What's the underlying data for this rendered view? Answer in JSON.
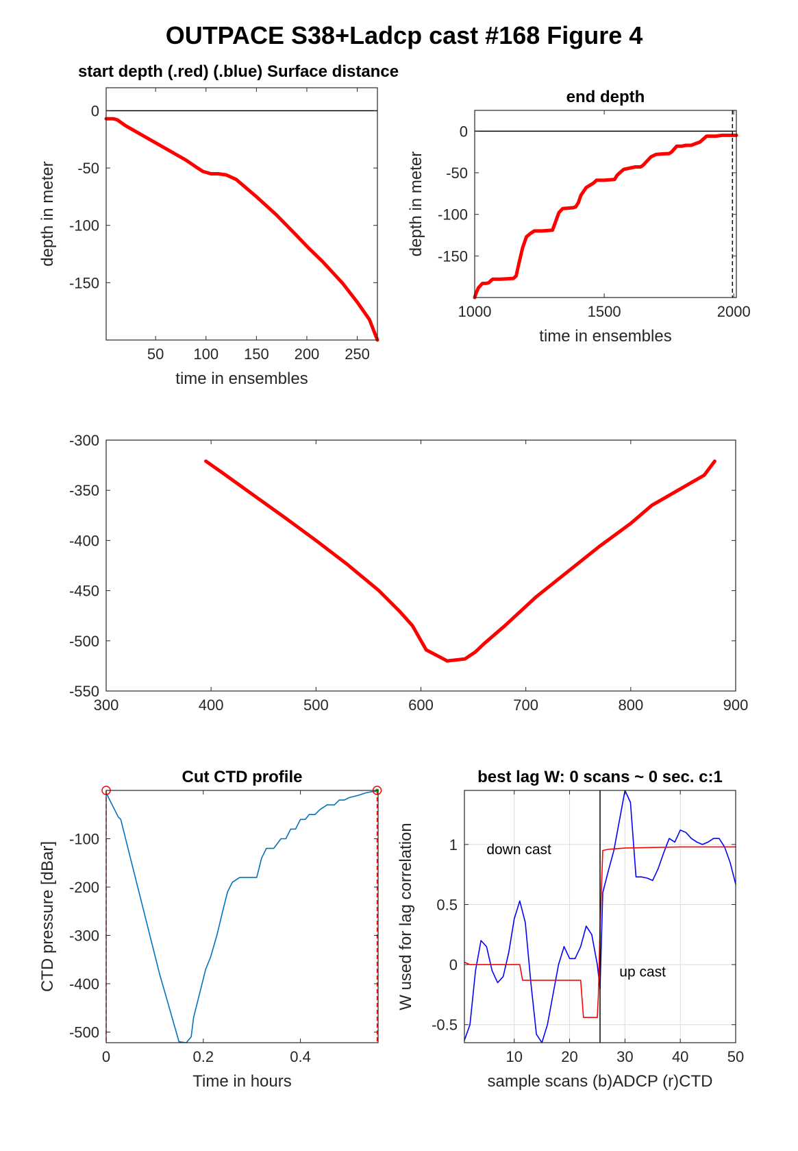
{
  "figure_title": "OUTPACE S38+Ladcp cast #168   Figure 4",
  "chart_data": [
    {
      "id": "start-depth",
      "type": "line",
      "title": "start depth (.red) (.blue) Surface distance",
      "xlabel": "time in ensembles",
      "ylabel": "depth in meter",
      "xlim": [
        1,
        270
      ],
      "ylim": [
        -200,
        20
      ],
      "xticks": [
        50,
        100,
        150,
        200,
        250
      ],
      "yticks": [
        0,
        -50,
        -100,
        -150
      ],
      "grid": false,
      "reference_line": 0,
      "series": [
        {
          "color": "#ff0000",
          "x": [
            1,
            8,
            12,
            20,
            40,
            60,
            80,
            90,
            97,
            105,
            112,
            120,
            130,
            150,
            170,
            190,
            202,
            215,
            235,
            250,
            262,
            270
          ],
          "y": [
            -7,
            -7,
            -8,
            -13,
            -23,
            -33,
            -43,
            -49,
            -53,
            -55,
            -55,
            -56,
            -60,
            -75,
            -91,
            -109,
            -120,
            -131,
            -150,
            -167,
            -182,
            -200
          ]
        }
      ]
    },
    {
      "id": "end-depth",
      "type": "line",
      "title": "end depth",
      "xlabel": "time in ensembles",
      "ylabel": "depth in meter",
      "xlim": [
        1000,
        2010
      ],
      "ylim": [
        -200,
        25
      ],
      "xticks": [
        1000,
        1500,
        2000
      ],
      "yticks": [
        0,
        -50,
        -100,
        -150
      ],
      "grid": false,
      "reference_line": 0,
      "vertical_marker": 1995,
      "series": [
        {
          "color": "#ff0000",
          "x": [
            1000,
            1005,
            1015,
            1030,
            1045,
            1055,
            1065,
            1070,
            1100,
            1150,
            1160,
            1170,
            1185,
            1200,
            1215,
            1230,
            1260,
            1300,
            1310,
            1325,
            1340,
            1380,
            1390,
            1400,
            1410,
            1430,
            1460,
            1470,
            1480,
            1500,
            1540,
            1550,
            1560,
            1575,
            1620,
            1630,
            1640,
            1650,
            1680,
            1700,
            1740,
            1750,
            1760,
            1780,
            1800,
            1815,
            1835,
            1870,
            1895,
            1900,
            1930,
            1955,
            1960,
            2010
          ],
          "y": [
            -200,
            -195,
            -188,
            -183,
            -183,
            -182,
            -179,
            -178,
            -178,
            -177,
            -174,
            -160,
            -140,
            -127,
            -123,
            -120,
            -120,
            -119,
            -111,
            -98,
            -93,
            -92,
            -91,
            -86,
            -77,
            -68,
            -62,
            -59,
            -59,
            -59,
            -58,
            -53,
            -50,
            -46,
            -43,
            -43,
            -43,
            -41,
            -31,
            -28,
            -27,
            -27,
            -25,
            -18,
            -18,
            -17,
            -17,
            -13,
            -6,
            -6,
            -6,
            -5,
            -5,
            -5
          ]
        }
      ]
    },
    {
      "id": "ensemble-depth",
      "type": "line",
      "title": "",
      "xlabel": "",
      "ylabel": "",
      "xlim": [
        300,
        900
      ],
      "ylim": [
        -550,
        -300
      ],
      "xticks": [
        300,
        400,
        500,
        600,
        700,
        800,
        900
      ],
      "yticks": [
        -300,
        -350,
        -400,
        -450,
        -500,
        -550
      ],
      "grid": false,
      "series": [
        {
          "color": "#ff0000",
          "x": [
            395,
            410,
            430,
            450,
            470,
            500,
            530,
            560,
            580,
            592,
            605,
            625,
            642,
            652,
            660,
            680,
            710,
            740,
            770,
            800,
            820,
            850,
            870,
            880
          ],
          "y": [
            -321,
            -332,
            -347,
            -362,
            -377,
            -400,
            -424,
            -450,
            -471,
            -485,
            -509,
            -520,
            -518,
            -511,
            -503,
            -485,
            -456,
            -431,
            -406,
            -383,
            -365,
            -347,
            -335,
            -321
          ]
        }
      ]
    },
    {
      "id": "cut-ctd",
      "type": "line",
      "title": "Cut CTD profile",
      "xlabel": "Time in hours",
      "ylabel": "CTD pressure [dBar]",
      "xlim": [
        0,
        0.56
      ],
      "ylim": [
        -522,
        0
      ],
      "xticks": [
        0,
        0.2,
        0.4
      ],
      "yticks": [
        -100,
        -200,
        -300,
        -400,
        -500
      ],
      "grid": false,
      "cut_marks": [
        0,
        0.558
      ],
      "series": [
        {
          "color": "#0072bd",
          "x": [
            0,
            0.005,
            0.015,
            0.025,
            0.03,
            0.05,
            0.07,
            0.09,
            0.11,
            0.13,
            0.15,
            0.165,
            0.175,
            0.18,
            0.19,
            0.205,
            0.215,
            0.228,
            0.24,
            0.25,
            0.26,
            0.275,
            0.285,
            0.29,
            0.31,
            0.32,
            0.33,
            0.34,
            0.345,
            0.36,
            0.37,
            0.38,
            0.39,
            0.4,
            0.41,
            0.418,
            0.43,
            0.44,
            0.455,
            0.47,
            0.48,
            0.49,
            0.5,
            0.52,
            0.535,
            0.545,
            0.555,
            0.558
          ],
          "y": [
            -5,
            -15,
            -35,
            -55,
            -60,
            -140,
            -220,
            -300,
            -380,
            -450,
            -520,
            -522,
            -510,
            -470,
            -430,
            -370,
            -345,
            -300,
            -250,
            -210,
            -190,
            -180,
            -180,
            -180,
            -180,
            -140,
            -120,
            -120,
            -120,
            -100,
            -100,
            -80,
            -80,
            -60,
            -60,
            -50,
            -50,
            -40,
            -30,
            -30,
            -20,
            -20,
            -15,
            -10,
            -5,
            -3,
            -2,
            -2
          ]
        }
      ]
    },
    {
      "id": "best-lag",
      "type": "line",
      "title": "best lag W: 0 scans ~ 0 sec.  c:1",
      "xlabel": "sample scans (b)ADCP (r)CTD",
      "ylabel": "W used for lag correlation",
      "xlim": [
        1,
        50
      ],
      "ylim": [
        -0.65,
        1.45
      ],
      "xticks": [
        10,
        20,
        30,
        40,
        50
      ],
      "yticks": [
        1,
        0.5,
        0,
        -0.5
      ],
      "grid": true,
      "split_line": 25.5,
      "annotations": [
        "down cast",
        "up cast"
      ],
      "series": [
        {
          "color": "#0000ff",
          "x": [
            1,
            2,
            3,
            4,
            5,
            6,
            7,
            8,
            9,
            10,
            11,
            12,
            13,
            14,
            15,
            16,
            17,
            18,
            19,
            20,
            21,
            22,
            23,
            24,
            25,
            25.5,
            26,
            27,
            28,
            29,
            30,
            31,
            32,
            33,
            34,
            35,
            36,
            37,
            38,
            39,
            40,
            41,
            42,
            43,
            44,
            45,
            46,
            47,
            48,
            49,
            50
          ],
          "y": [
            -0.63,
            -0.5,
            -0.05,
            0.2,
            0.15,
            -0.05,
            -0.15,
            -0.1,
            0.1,
            0.38,
            0.53,
            0.35,
            -0.15,
            -0.58,
            -0.65,
            -0.5,
            -0.25,
            0.0,
            0.15,
            0.05,
            0.05,
            0.15,
            0.32,
            0.25,
            0.0,
            -0.2,
            0.6,
            0.78,
            0.95,
            1.2,
            1.45,
            1.35,
            0.73,
            0.73,
            0.72,
            0.7,
            0.8,
            0.93,
            1.05,
            1.02,
            1.12,
            1.1,
            1.05,
            1.02,
            1.0,
            1.02,
            1.05,
            1.05,
            0.98,
            0.85,
            0.67
          ]
        },
        {
          "color": "#ff0000",
          "x": [
            1,
            2,
            3,
            11,
            11.5,
            22,
            22.5,
            25,
            25.2,
            25.5,
            26,
            27,
            30,
            40,
            49,
            50
          ],
          "y": [
            0.02,
            0.0,
            0.0,
            0.0,
            -0.13,
            -0.13,
            -0.44,
            -0.44,
            -0.25,
            0.3,
            0.95,
            0.96,
            0.97,
            0.98,
            0.98,
            0.98
          ]
        }
      ]
    }
  ]
}
